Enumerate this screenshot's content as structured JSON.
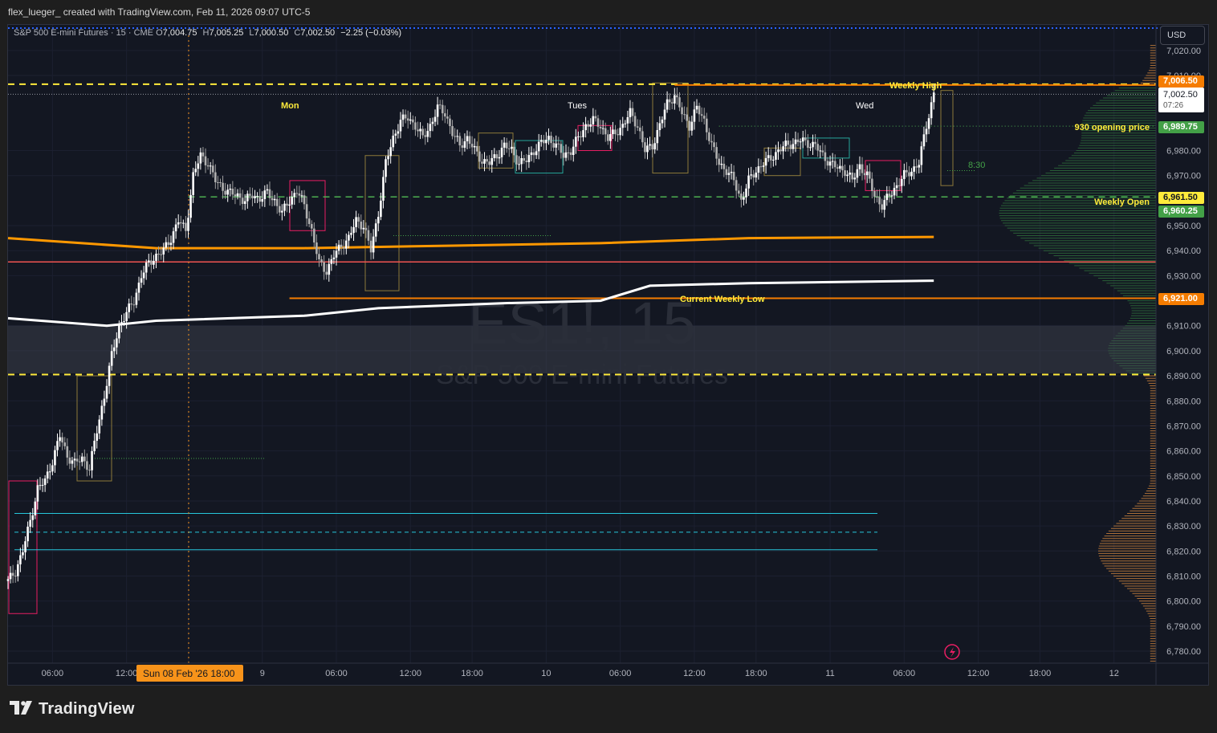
{
  "header": {
    "credit": "flex_lueger_ created with TradingView.com, Feb 11, 2026 09:07 UTC-5"
  },
  "legend": {
    "symbol": "S&P 500 E-mini Futures · 15 · CME",
    "o_label": "O",
    "o": "7,004.75",
    "h_label": "H",
    "h": "7,005.25",
    "l_label": "L",
    "l": "7,000.50",
    "c_label": "C",
    "c": "7,002.50",
    "change": "−2.25 (−0.03%)"
  },
  "currency_button": "USD",
  "watermark": {
    "ticker": "ES1!, 15",
    "name": "S&P 500 E-mini Futures"
  },
  "footer": {
    "brand": "TradingView"
  },
  "price_tags": {
    "weekly_high": "7,006.50",
    "last": "7,002.50",
    "countdown": "07:26",
    "opening_930": "6,989.75",
    "weekly_open": "6,961.50",
    "other_green": "6,960.25",
    "weekly_low": "6,921.00"
  },
  "date_tag": "Sun 08 Feb '26   18:00",
  "annotations": {
    "weekly_high": "Weekly High",
    "opening_930": "930 opening price",
    "weekly_open": "Weekly Open",
    "current_weekly_low": "Current Weekly Low",
    "time_830": "8:30",
    "mon": "Mon",
    "tues": "Tues",
    "wed": "Wed"
  },
  "colors": {
    "background": "#131722",
    "up": "#ffffff",
    "down": "#9e9e9e",
    "weekly_high_line": "#f57c00",
    "dashed_yellow": "#ffeb3b",
    "green_dashed": "#4caf50",
    "orange_vwap": "#ff9800",
    "white_vwap": "#ffffff",
    "red_line": "#ef5350",
    "teal_line": "#26c6da",
    "profile_green": "#2e6b3a",
    "profile_orange": "#c8803c"
  },
  "chart_data": {
    "type": "candlestick",
    "symbol": "ES1!",
    "interval": "15",
    "ylim": [
      6775,
      7025
    ],
    "y_ticks": [
      "7,020.00",
      "7,010.00",
      "6,980.00",
      "6,970.00",
      "6,950.00",
      "6,940.00",
      "6,930.00",
      "6,910.00",
      "6,900.00",
      "6,890.00",
      "6,880.00",
      "6,870.00",
      "6,860.00",
      "6,850.00",
      "6,840.00",
      "6,830.00",
      "6,820.00",
      "6,810.00",
      "6,800.00",
      "6,790.00",
      "6,780.00"
    ],
    "x_ticks": [
      "06:00",
      "12:00",
      "18:00",
      "9",
      "06:00",
      "12:00",
      "18:00",
      "10",
      "06:00",
      "12:00",
      "18:00",
      "11",
      "06:00",
      "12:00",
      "18:00",
      "12"
    ],
    "levels": {
      "weekly_high": 7006.5,
      "opening_930": 6989.75,
      "weekly_open": 6961.5,
      "weekly_low": 6921.0,
      "red_line": 6935.5,
      "yellow_dashed_upper": 7006.5,
      "yellow_dashed_lower": 6890.5,
      "teal_upper": 6835.0,
      "teal_mid": 6827.5,
      "teal_lower": 6820.5
    },
    "shaded_zone": [
      6891,
      6910
    ],
    "close_path": [
      [
        0,
        6808
      ],
      [
        3,
        6812
      ],
      [
        6,
        6820
      ],
      [
        9,
        6832
      ],
      [
        12,
        6845
      ],
      [
        15,
        6848
      ],
      [
        18,
        6856
      ],
      [
        21,
        6866
      ],
      [
        24,
        6858
      ],
      [
        27,
        6855
      ],
      [
        30,
        6857
      ],
      [
        33,
        6853
      ],
      [
        36,
        6868
      ],
      [
        39,
        6882
      ],
      [
        42,
        6898
      ],
      [
        45,
        6910
      ],
      [
        48,
        6915
      ],
      [
        51,
        6920
      ],
      [
        54,
        6930
      ],
      [
        57,
        6935
      ],
      [
        60,
        6938
      ],
      [
        63,
        6940
      ],
      [
        66,
        6945
      ],
      [
        69,
        6952
      ],
      [
        72,
        6948
      ],
      [
        75,
        6970
      ],
      [
        78,
        6978
      ],
      [
        81,
        6975
      ],
      [
        84,
        6968
      ],
      [
        87,
        6965
      ],
      [
        90,
        6963
      ],
      [
        93,
        6962
      ],
      [
        96,
        6960
      ],
      [
        99,
        6962
      ],
      [
        102,
        6961
      ],
      [
        105,
        6963
      ],
      [
        108,
        6960
      ],
      [
        111,
        6955
      ],
      [
        114,
        6960
      ],
      [
        117,
        6964
      ],
      [
        120,
        6958
      ],
      [
        123,
        6948
      ],
      [
        126,
        6935
      ],
      [
        129,
        6932
      ],
      [
        132,
        6938
      ],
      [
        135,
        6942
      ],
      [
        138,
        6945
      ],
      [
        141,
        6952
      ],
      [
        144,
        6950
      ],
      [
        147,
        6940
      ],
      [
        150,
        6955
      ],
      [
        153,
        6975
      ],
      [
        156,
        6985
      ],
      [
        159,
        6992
      ],
      [
        162,
        6993
      ],
      [
        165,
        6990
      ],
      [
        168,
        6985
      ],
      [
        171,
        6990
      ],
      [
        174,
        6997
      ],
      [
        177,
        6995
      ],
      [
        180,
        6987
      ],
      [
        183,
        6982
      ],
      [
        186,
        6985
      ],
      [
        189,
        6980
      ],
      [
        192,
        6976
      ],
      [
        195,
        6975
      ],
      [
        198,
        6978
      ],
      [
        201,
        6982
      ],
      [
        204,
        6980
      ],
      [
        207,
        6975
      ],
      [
        210,
        6976
      ],
      [
        213,
        6980
      ],
      [
        216,
        6983
      ],
      [
        219,
        6985
      ],
      [
        222,
        6982
      ],
      [
        225,
        6978
      ],
      [
        228,
        6980
      ],
      [
        231,
        6985
      ],
      [
        234,
        6990
      ],
      [
        237,
        6992
      ],
      [
        240,
        6990
      ],
      [
        243,
        6985
      ],
      [
        246,
        6987
      ],
      [
        249,
        6990
      ],
      [
        252,
        6995
      ],
      [
        255,
        6990
      ],
      [
        258,
        6980
      ],
      [
        261,
        6982
      ],
      [
        264,
        6990
      ],
      [
        267,
        6999
      ],
      [
        270,
        7002
      ],
      [
        273,
        6995
      ],
      [
        276,
        6990
      ],
      [
        279,
        6997
      ],
      [
        282,
        6992
      ],
      [
        285,
        6982
      ],
      [
        288,
        6975
      ],
      [
        291,
        6972
      ],
      [
        294,
        6968
      ],
      [
        297,
        6960
      ],
      [
        300,
        6968
      ],
      [
        303,
        6972
      ],
      [
        306,
        6975
      ],
      [
        309,
        6977
      ],
      [
        312,
        6980
      ],
      [
        315,
        6982
      ],
      [
        318,
        6983
      ],
      [
        321,
        6984
      ],
      [
        324,
        6983
      ],
      [
        327,
        6982
      ],
      [
        330,
        6978
      ],
      [
        333,
        6975
      ],
      [
        336,
        6973
      ],
      [
        339,
        6972
      ],
      [
        342,
        6968
      ],
      [
        345,
        6974
      ],
      [
        348,
        6970
      ],
      [
        351,
        6962
      ],
      [
        354,
        6958
      ],
      [
        357,
        6962
      ],
      [
        360,
        6966
      ],
      [
        363,
        6970
      ],
      [
        366,
        6972
      ],
      [
        369,
        6975
      ],
      [
        372,
        6990
      ],
      [
        375,
        7003
      ]
    ],
    "orange_vwap": [
      [
        0,
        6945
      ],
      [
        30,
        6943
      ],
      [
        60,
        6941
      ],
      [
        120,
        6941
      ],
      [
        180,
        6942
      ],
      [
        240,
        6943
      ],
      [
        300,
        6945
      ],
      [
        375,
        6945.5
      ]
    ],
    "white_vwap": [
      [
        0,
        6913
      ],
      [
        40,
        6910
      ],
      [
        60,
        6912
      ],
      [
        120,
        6914
      ],
      [
        150,
        6917
      ],
      [
        200,
        6919
      ],
      [
        240,
        6920
      ],
      [
        260,
        6926
      ],
      [
        300,
        6927
      ],
      [
        375,
        6928
      ]
    ],
    "session_labels": [
      "Mon",
      "Tues",
      "Wed"
    ]
  }
}
